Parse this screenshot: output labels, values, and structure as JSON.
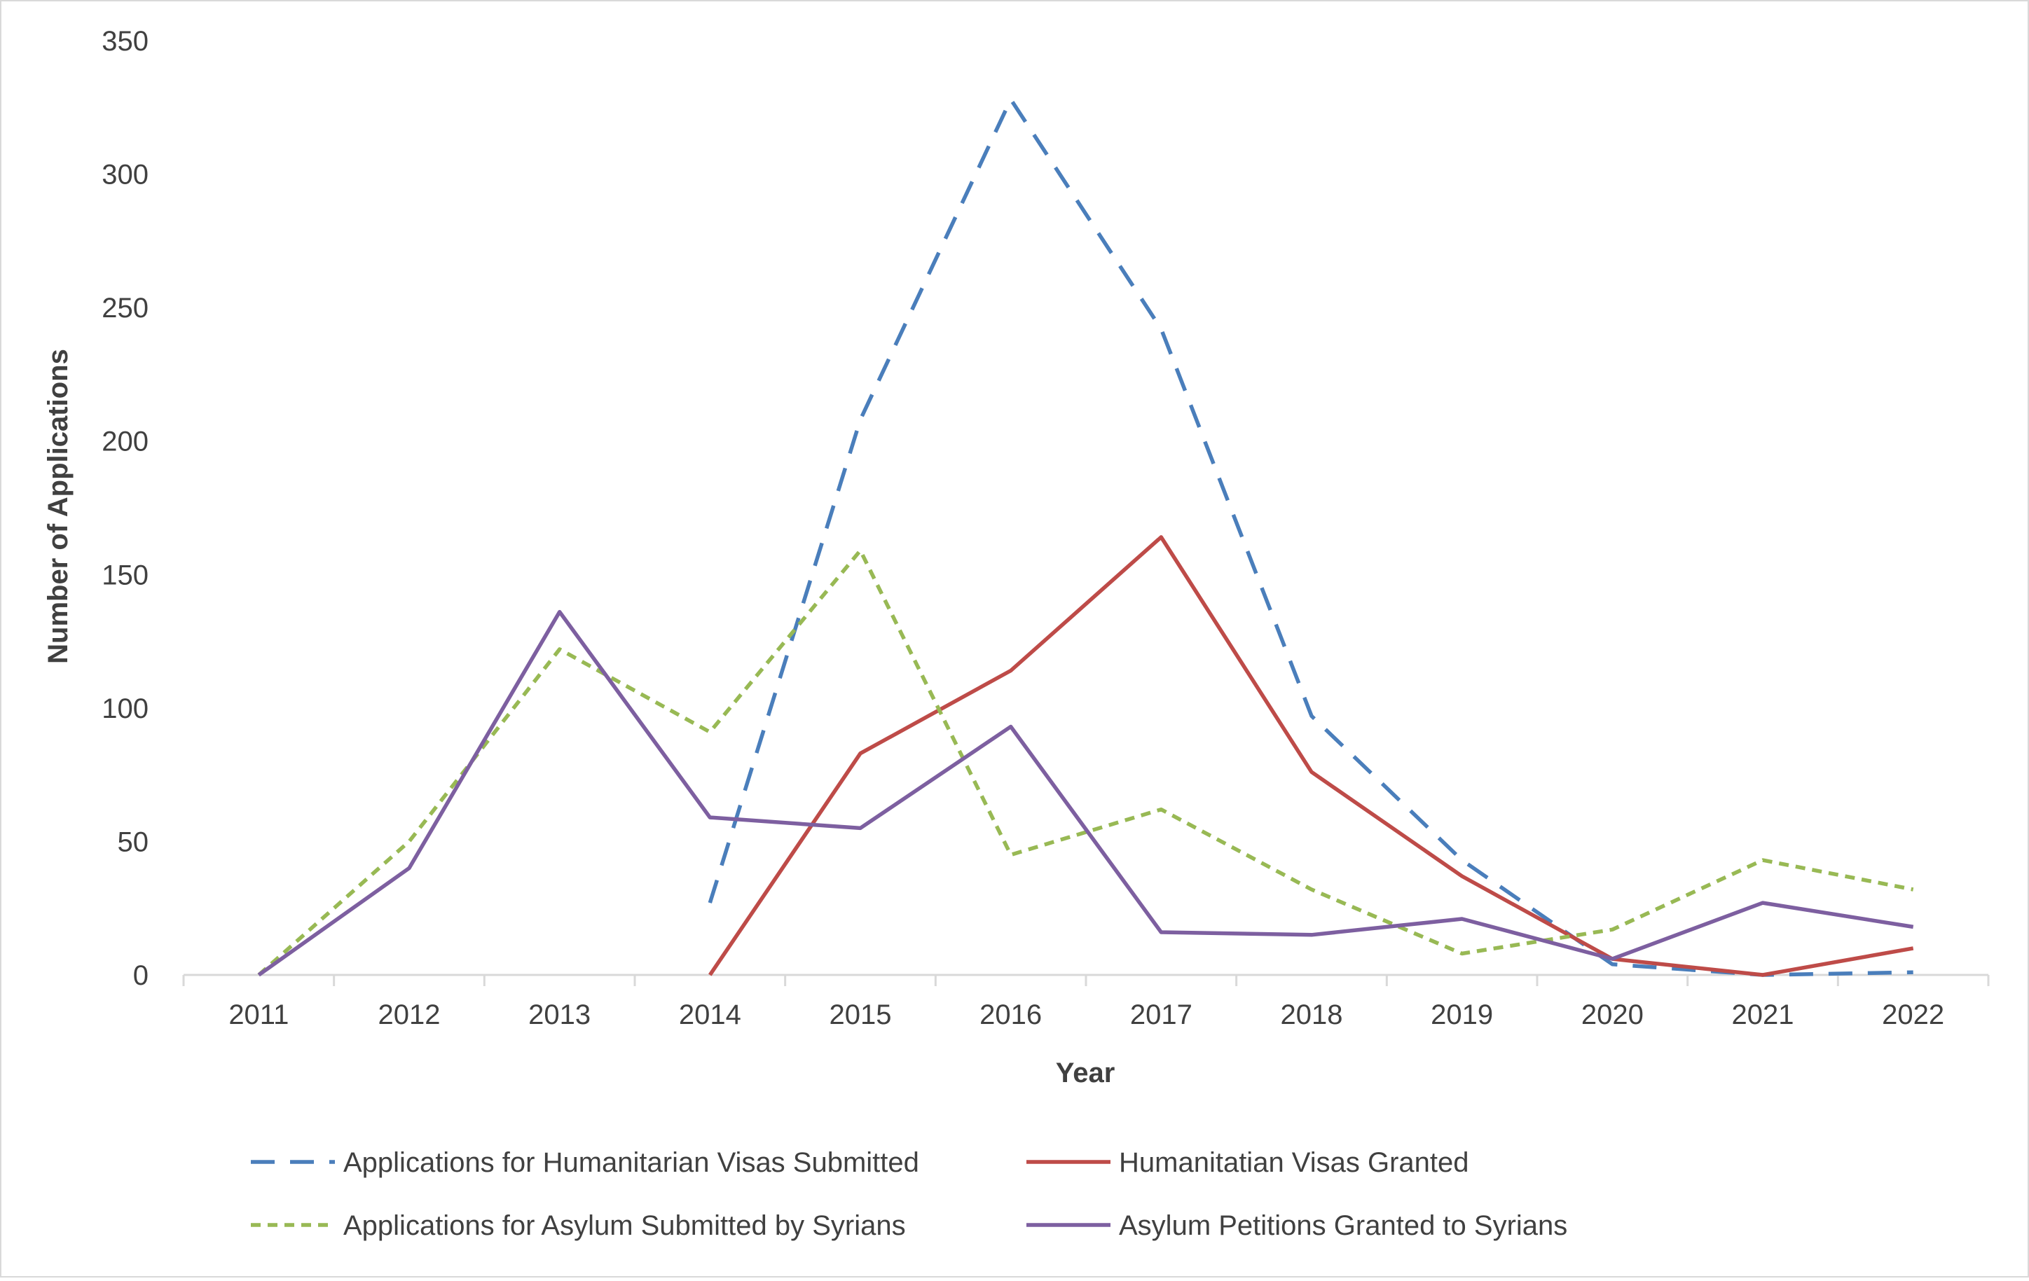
{
  "chart_data": {
    "type": "line",
    "title": "",
    "xlabel": "Year",
    "ylabel": "Number of Applications",
    "ylim": [
      0,
      350
    ],
    "yticks": [
      0,
      50,
      100,
      150,
      200,
      250,
      300,
      350
    ],
    "categories": [
      "2011",
      "2012",
      "2013",
      "2014",
      "2015",
      "2016",
      "2017",
      "2018",
      "2019",
      "2020",
      "2021",
      "2022"
    ],
    "grid": false,
    "legend_position": "bottom",
    "series": [
      {
        "name": "Applications for Humanitarian Visas Submitted",
        "color": "#4a7ebb",
        "dash": "long-dash",
        "values": [
          null,
          null,
          null,
          27,
          208,
          328,
          242,
          97,
          43,
          4,
          0,
          1
        ]
      },
      {
        "name": "Humanitatian Visas Granted",
        "color": "#be4b48",
        "dash": "solid",
        "values": [
          null,
          null,
          null,
          0,
          83,
          114,
          164,
          76,
          37,
          6,
          0,
          10
        ]
      },
      {
        "name": "Applications for Asylum Submitted by Syrians",
        "color": "#98b954",
        "dash": "short-dash",
        "values": [
          0,
          50,
          122,
          91,
          159,
          45,
          62,
          32,
          8,
          17,
          43,
          32
        ]
      },
      {
        "name": "Asylum Petitions Granted to Syrians",
        "color": "#7d5fa0",
        "dash": "solid",
        "values": [
          0,
          40,
          136,
          59,
          55,
          93,
          16,
          15,
          21,
          6,
          27,
          18
        ]
      }
    ]
  }
}
